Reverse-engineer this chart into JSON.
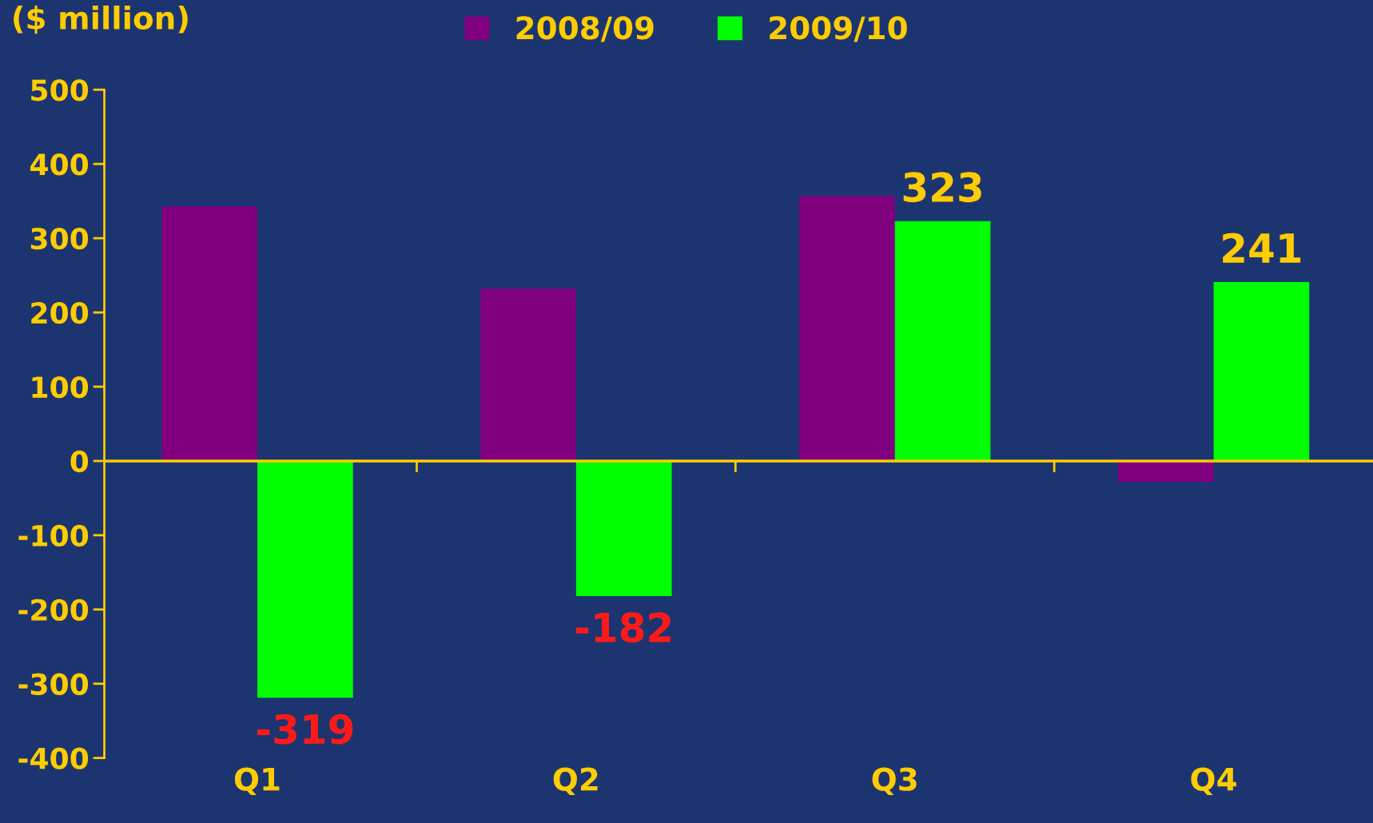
{
  "chart_data": {
    "type": "bar",
    "ylabel": "($ million)",
    "categories": [
      "Q1",
      "Q2",
      "Q3",
      "Q4"
    ],
    "series": [
      {
        "name": "2008/09",
        "color": "#800080",
        "values": [
          343,
          232,
          357,
          -28
        ]
      },
      {
        "name": "2009/10",
        "color": "#00ff00",
        "values": [
          -319,
          -182,
          323,
          241
        ],
        "value_labels": [
          "-319",
          "-182",
          "323",
          "241"
        ]
      }
    ],
    "ylim": [
      -400,
      500
    ],
    "yticks": [
      -400,
      -300,
      -200,
      -100,
      0,
      100,
      200,
      300,
      400,
      500
    ],
    "ref_lines": [
      {
        "axis": "y",
        "value": 0,
        "color": "#ffcc00"
      }
    ],
    "grid": false,
    "legend": "top"
  }
}
